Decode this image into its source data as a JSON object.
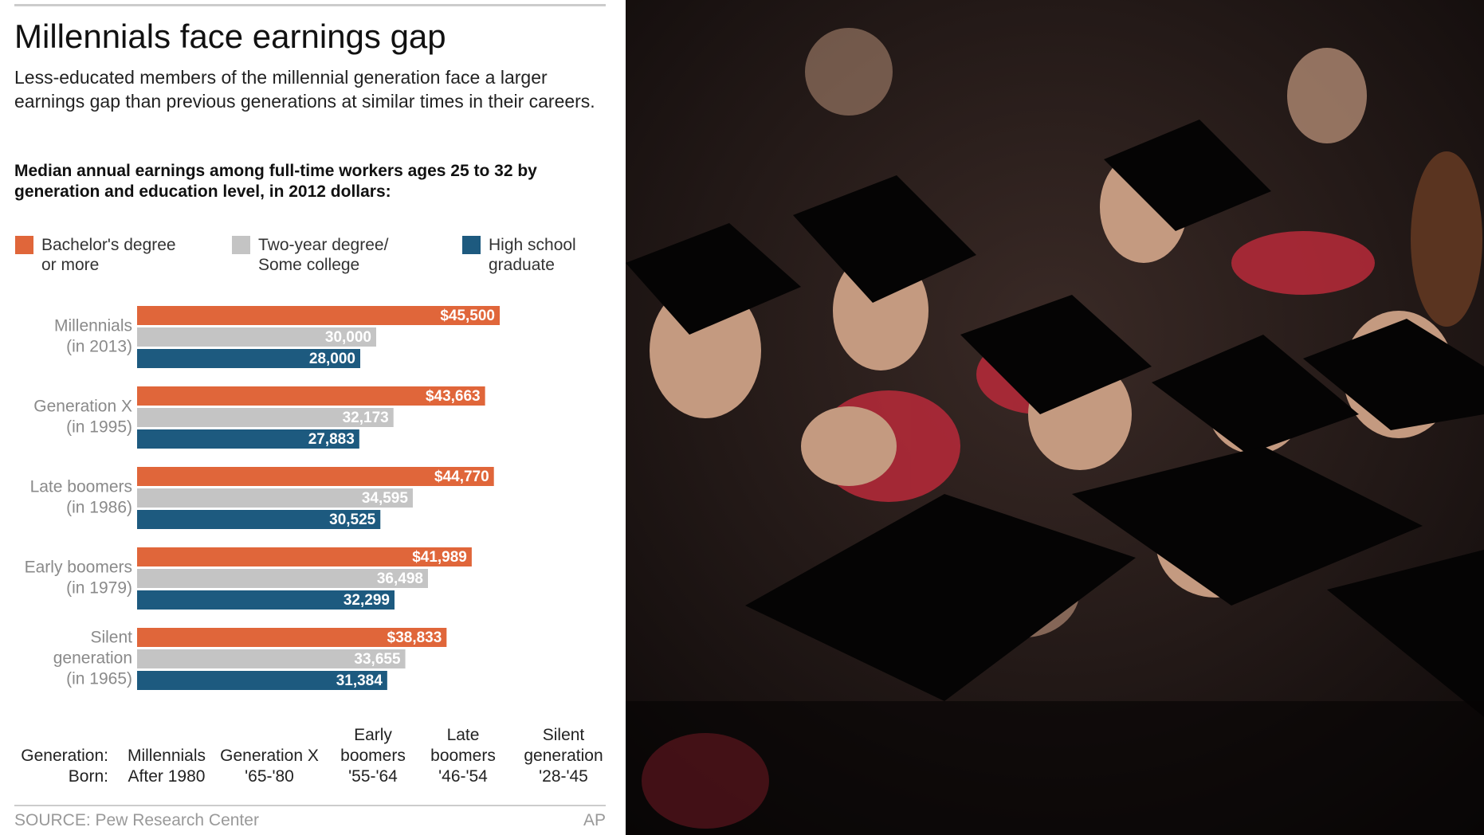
{
  "chart_data": {
    "type": "bar",
    "orientation": "horizontal",
    "title": "Millennials face earnings gap",
    "subtitle": "Less-educated members of the millennial generation face a larger earnings gap than previous generations at similar times in their careers.",
    "note": "Median annual earnings among full-time workers ages 25 to 32 by generation and education level, in 2012 dollars:",
    "categories": [
      [
        "Millennials",
        "(in 2013)"
      ],
      [
        "Generation X",
        "(in 1995)"
      ],
      [
        "Late boomers",
        "(in 1986)"
      ],
      [
        "Early boomers",
        "(in 1979)"
      ],
      [
        "Silent",
        "generation",
        "(in 1965)"
      ]
    ],
    "series": [
      {
        "name": "Bachelor's degree or more",
        "color": "#e0663a",
        "values": [
          45500,
          43663,
          44770,
          41989,
          38833
        ],
        "value_labels": [
          "$45,500",
          "$43,663",
          "$44,770",
          "$41,989",
          "$38,833"
        ]
      },
      {
        "name": "Two-year degree/ Some college",
        "color": "#c4c4c4",
        "values": [
          30000,
          32173,
          34595,
          36498,
          33655
        ],
        "value_labels": [
          "30,000",
          "32,173",
          "34,595",
          "36,498",
          "33,655"
        ]
      },
      {
        "name": "High school graduate",
        "color": "#1d5a7f",
        "values": [
          28000,
          27883,
          30525,
          32299,
          31384
        ],
        "value_labels": [
          "28,000",
          "27,883",
          "30,525",
          "32,299",
          "31,384"
        ]
      }
    ],
    "generation_table": {
      "row_labels": [
        "Generation:",
        "Born:"
      ],
      "columns": [
        {
          "generation": "Millennials",
          "born": "After 1980"
        },
        {
          "generation": "Generation X",
          "born": "'65-'80"
        },
        {
          "generation": "Early boomers",
          "born": "'55-'64"
        },
        {
          "generation": "Late boomers",
          "born": "'46-'54"
        },
        {
          "generation": "Silent generation",
          "born": "'28-'45"
        }
      ]
    },
    "source": "SOURCE: Pew Research Center",
    "credit": "AP"
  }
}
